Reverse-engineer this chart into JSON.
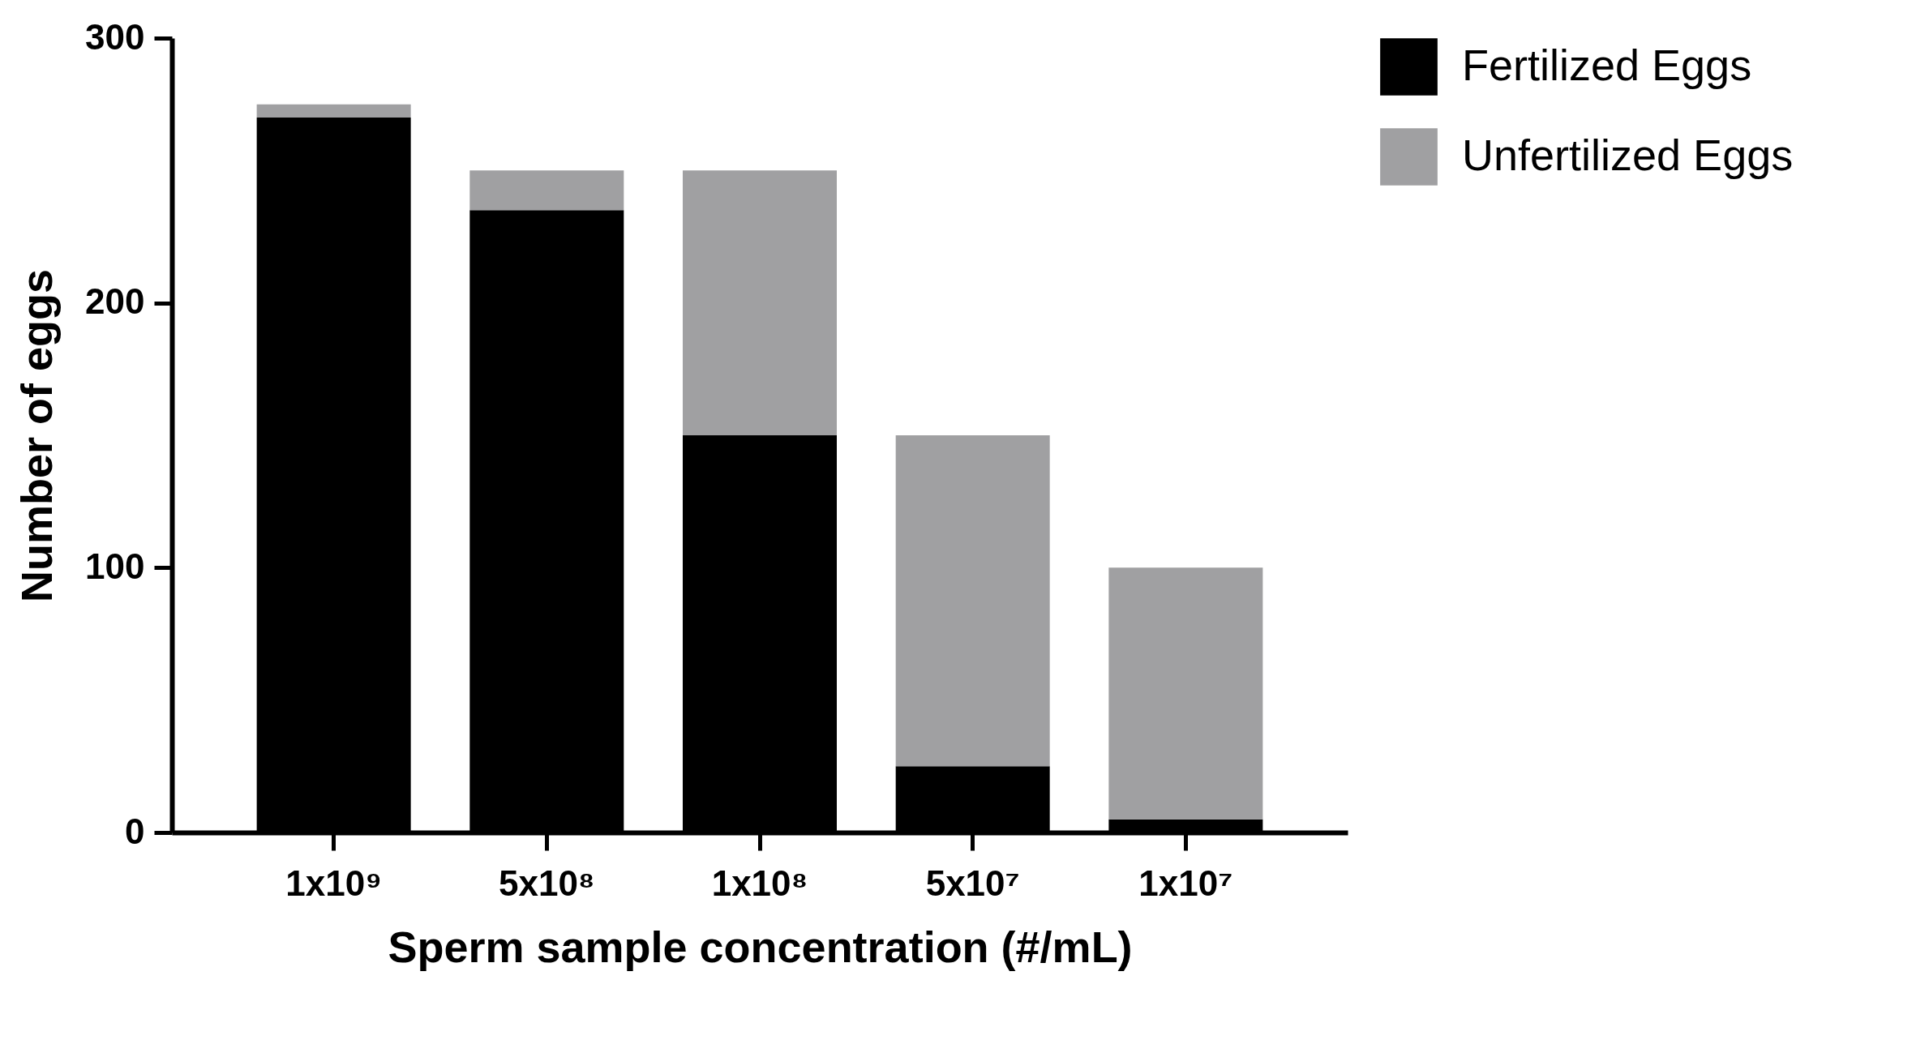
{
  "chart_data": {
    "type": "bar",
    "stacked": true,
    "xlabel": "Sperm sample concentration (#/mL)",
    "ylabel": "Number of eggs",
    "categories": [
      "1x10⁹",
      "5x10⁸",
      "1x10⁸",
      "5x10⁷",
      "1x10⁷"
    ],
    "series": [
      {
        "name": "Fertilized Eggs",
        "color": "#000000",
        "values": [
          270,
          235,
          150,
          25,
          5
        ]
      },
      {
        "name": "Unfertilized Eggs",
        "color": "#a0a0a2",
        "values": [
          5,
          15,
          100,
          125,
          95
        ]
      }
    ],
    "ylim": [
      0,
      300
    ],
    "yticks": [
      0,
      100,
      200,
      300
    ],
    "grid": false,
    "legend": "top right"
  }
}
